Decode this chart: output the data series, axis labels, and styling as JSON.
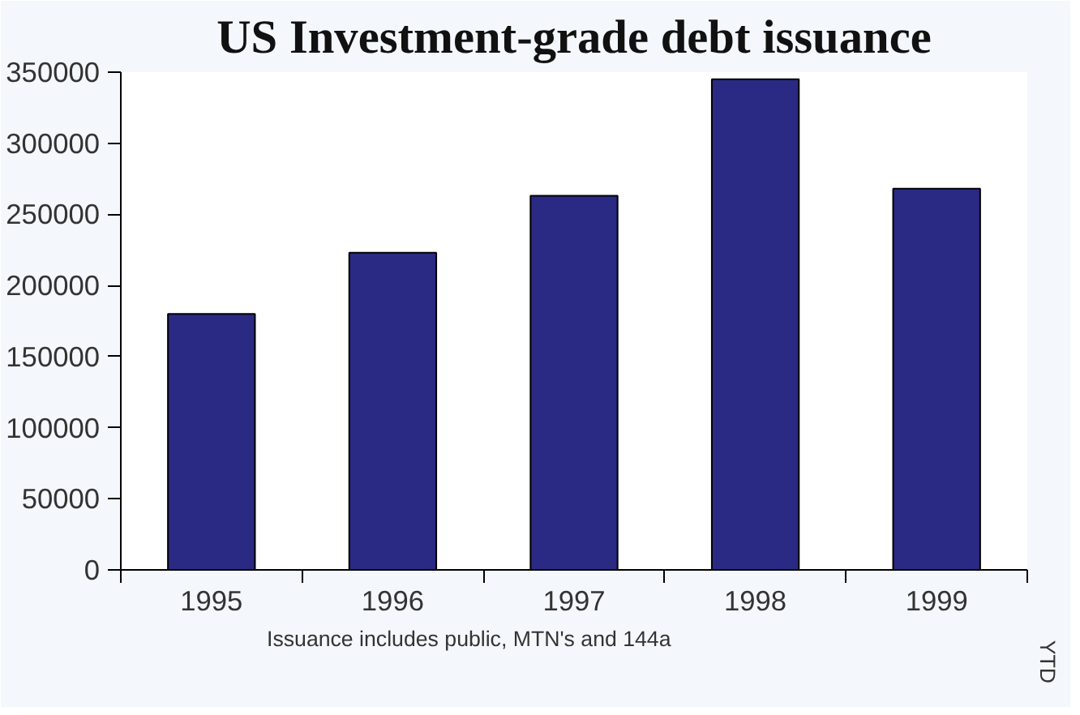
{
  "chart_data": {
    "type": "bar",
    "title": "US Investment-grade debt issuance",
    "categories": [
      "1995",
      "1996",
      "1997",
      "1998",
      "1999"
    ],
    "values": [
      180000,
      223000,
      263000,
      345000,
      268000
    ],
    "color": "#2a2a84",
    "ylim": [
      0,
      350000
    ],
    "yticks": [
      0,
      50000,
      100000,
      150000,
      200000,
      250000,
      300000,
      350000
    ],
    "grid": false,
    "annotations": [
      "YTD",
      "Issuance includes public, MTN's and 144a"
    ]
  }
}
